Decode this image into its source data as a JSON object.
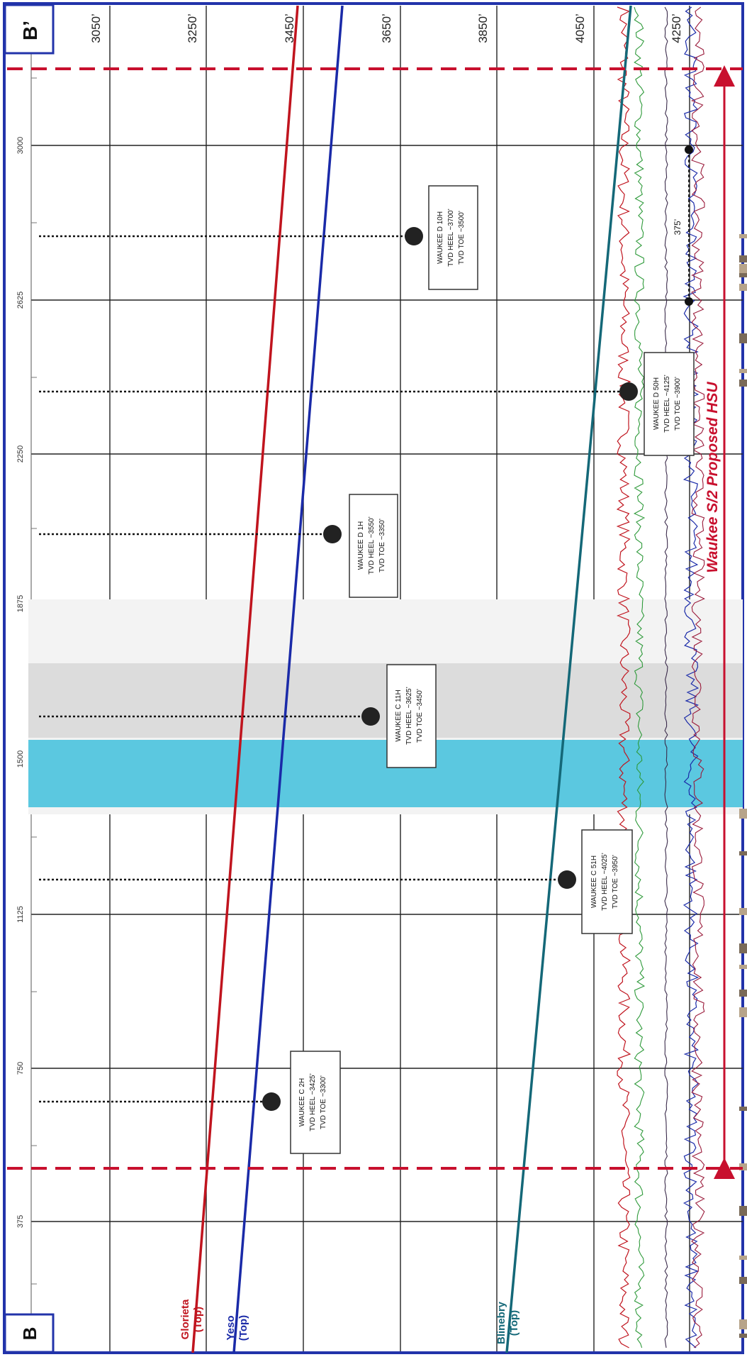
{
  "corner_labels": {
    "start": "B",
    "end": "B’"
  },
  "depth_labels": [
    "3050’",
    "3250’",
    "3450’",
    "3650’",
    "3850’",
    "4050’",
    "4250’"
  ],
  "distance_labels": [
    "375",
    "750",
    "1125",
    "1500",
    "1875",
    "2250",
    "2625",
    "3000"
  ],
  "horizons": [
    {
      "name": "Glorieta",
      "sub": "(Top)",
      "color": "#c0141e"
    },
    {
      "name": "Yeso",
      "sub": "(Top)",
      "color": "#1a2aa8"
    },
    {
      "name": "Blinebry",
      "sub": "(Top)",
      "color": "#146878"
    }
  ],
  "wells": [
    {
      "name": "WAUKEE C 2H",
      "heel": "TVD HEEL ~3425’",
      "toe": "TVD TOE ~3300’"
    },
    {
      "name": "WAUKEE C 51H",
      "heel": "TVD HEEL ~4025’",
      "toe": "TVD TOE ~3950’"
    },
    {
      "name": "WAUKEE C 11H",
      "heel": "TVD HEEL ~3625’",
      "toe": "TVD TOE ~3450’"
    },
    {
      "name": "WAUKEE D 1H",
      "heel": "TVD HEEL ~3550’",
      "toe": "TVD TOE ~3350’"
    },
    {
      "name": "WAUKEE D 50H",
      "heel": "TVD HEEL ~4125’",
      "toe": "TVD TOE ~3900’"
    },
    {
      "name": "WAUKEE D 10H",
      "heel": "TVD HEEL ~3700’",
      "toe": "TVD TOE ~3500’"
    }
  ],
  "spacing_label": "375’",
  "hsu_label": "Waukee S/2 Proposed HSU",
  "colors": {
    "frame": "#2233aa",
    "grid": "#222222",
    "hsu": "#c8102e",
    "log_fill": "#5bc8e0"
  }
}
